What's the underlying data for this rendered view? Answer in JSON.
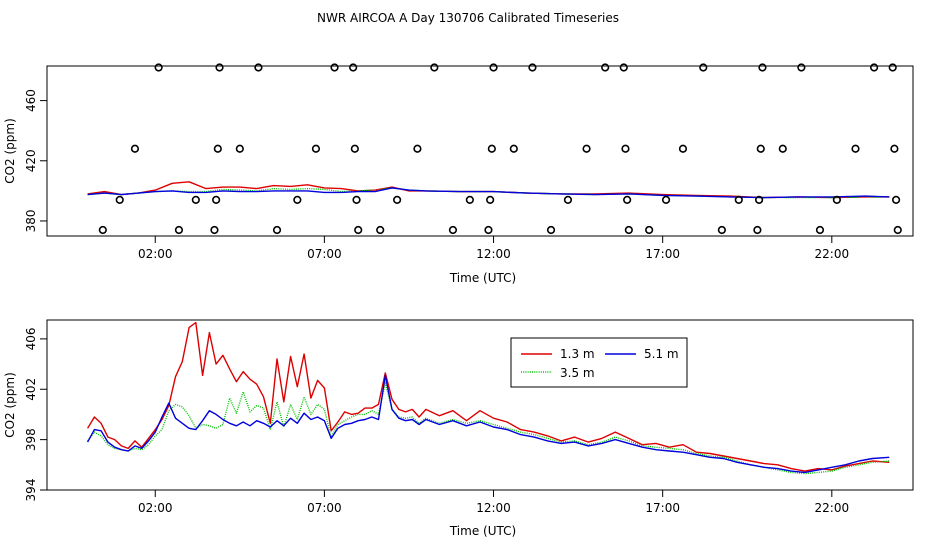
{
  "title": "NWR AIRCOA A  Day 130706  Calibrated Timeseries",
  "colors": {
    "s1": "#dd0000",
    "s2": "#00c000",
    "s3": "#0000dd"
  },
  "chart_data": [
    {
      "type": "scatter",
      "panel": "top",
      "xlabel": "Time (UTC)",
      "ylabel": "CO2 (ppm)",
      "xlim": [
        -1.2,
        24.4
      ],
      "ylim": [
        370,
        483
      ],
      "x_ticks": [
        2,
        7,
        12,
        17,
        22
      ],
      "x_tick_labels": [
        "02:00",
        "07:00",
        "12:00",
        "17:00",
        "22:00"
      ],
      "y_ticks": [
        380,
        420,
        460
      ],
      "y_tick_labels": [
        "380",
        "420",
        "460"
      ],
      "outlier_points": [
        {
          "x": 0.45,
          "y": 374
        },
        {
          "x": 0.95,
          "y": 394
        },
        {
          "x": 1.4,
          "y": 428
        },
        {
          "x": 2.1,
          "y": 482
        },
        {
          "x": 2.7,
          "y": 374
        },
        {
          "x": 3.2,
          "y": 394
        },
        {
          "x": 3.75,
          "y": 374
        },
        {
          "x": 3.8,
          "y": 394
        },
        {
          "x": 3.85,
          "y": 428
        },
        {
          "x": 3.9,
          "y": 482
        },
        {
          "x": 4.5,
          "y": 428
        },
        {
          "x": 5.05,
          "y": 482
        },
        {
          "x": 5.6,
          "y": 374
        },
        {
          "x": 6.2,
          "y": 394
        },
        {
          "x": 6.75,
          "y": 428
        },
        {
          "x": 7.3,
          "y": 482
        },
        {
          "x": 7.85,
          "y": 482
        },
        {
          "x": 7.9,
          "y": 428
        },
        {
          "x": 7.95,
          "y": 394
        },
        {
          "x": 8.0,
          "y": 374
        },
        {
          "x": 8.65,
          "y": 374
        },
        {
          "x": 9.15,
          "y": 394
        },
        {
          "x": 9.75,
          "y": 428
        },
        {
          "x": 10.25,
          "y": 482
        },
        {
          "x": 10.8,
          "y": 374
        },
        {
          "x": 11.3,
          "y": 394
        },
        {
          "x": 11.85,
          "y": 374
        },
        {
          "x": 11.9,
          "y": 394
        },
        {
          "x": 11.95,
          "y": 428
        },
        {
          "x": 12.0,
          "y": 482
        },
        {
          "x": 12.6,
          "y": 428
        },
        {
          "x": 13.15,
          "y": 482
        },
        {
          "x": 13.7,
          "y": 374
        },
        {
          "x": 14.2,
          "y": 394
        },
        {
          "x": 14.75,
          "y": 428
        },
        {
          "x": 15.3,
          "y": 482
        },
        {
          "x": 15.85,
          "y": 482
        },
        {
          "x": 15.9,
          "y": 428
        },
        {
          "x": 15.95,
          "y": 394
        },
        {
          "x": 16.0,
          "y": 374
        },
        {
          "x": 16.6,
          "y": 374
        },
        {
          "x": 17.1,
          "y": 394
        },
        {
          "x": 17.6,
          "y": 428
        },
        {
          "x": 18.2,
          "y": 482
        },
        {
          "x": 18.75,
          "y": 374
        },
        {
          "x": 19.25,
          "y": 394
        },
        {
          "x": 19.8,
          "y": 374
        },
        {
          "x": 19.85,
          "y": 394
        },
        {
          "x": 19.9,
          "y": 428
        },
        {
          "x": 19.95,
          "y": 482
        },
        {
          "x": 20.55,
          "y": 428
        },
        {
          "x": 21.1,
          "y": 482
        },
        {
          "x": 21.65,
          "y": 374
        },
        {
          "x": 22.15,
          "y": 394
        },
        {
          "x": 22.7,
          "y": 428
        },
        {
          "x": 23.25,
          "y": 482
        },
        {
          "x": 23.8,
          "y": 482
        },
        {
          "x": 23.85,
          "y": 428
        },
        {
          "x": 23.9,
          "y": 394
        },
        {
          "x": 23.95,
          "y": 374
        }
      ],
      "series": [
        {
          "name": "1.3 m",
          "x": [
            0,
            0.5,
            1,
            1.5,
            2,
            2.5,
            3,
            3.5,
            4,
            4.5,
            5,
            5.5,
            6,
            6.5,
            7,
            7.5,
            8,
            8.5,
            9,
            9.5,
            10,
            11,
            12,
            13,
            14,
            15,
            16,
            17,
            18,
            19,
            20,
            21,
            22,
            23,
            23.7
          ],
          "y": [
            398,
            399.5,
            397.5,
            398.5,
            400.5,
            405,
            406,
            401.5,
            402.5,
            402.5,
            401.5,
            403.5,
            403,
            404,
            402,
            401.5,
            400,
            400.5,
            402.5,
            400,
            400,
            399.5,
            399.5,
            398.5,
            398,
            398,
            398.5,
            397.5,
            397,
            396.5,
            395.5,
            396,
            395.5,
            396,
            396
          ]
        },
        {
          "name": "3.5 m",
          "x": [
            0,
            0.5,
            1,
            1.5,
            2,
            2.5,
            3,
            3.5,
            4,
            4.5,
            5,
            5.5,
            6,
            6.5,
            7,
            7.5,
            8,
            8.5,
            9,
            9.5,
            10,
            11,
            12,
            13,
            14,
            15,
            16,
            17,
            18,
            19,
            20,
            21,
            22,
            23,
            23.7
          ],
          "y": [
            397.5,
            398.5,
            397.5,
            398.5,
            399.5,
            400,
            399.5,
            399.5,
            401,
            400.5,
            400,
            401.5,
            401,
            401.5,
            401,
            399.5,
            400,
            400.5,
            402,
            400.5,
            400,
            399.5,
            399.5,
            398.5,
            398,
            397.5,
            398,
            397,
            396.5,
            396,
            395.5,
            395.5,
            395.5,
            396,
            396
          ]
        },
        {
          "name": "5.1 m",
          "x": [
            0,
            0.5,
            1,
            1.5,
            2,
            2.5,
            3,
            3.5,
            4,
            4.5,
            5,
            5.5,
            6,
            6.5,
            7,
            7.5,
            8,
            8.5,
            9,
            9.5,
            10,
            11,
            12,
            13,
            14,
            15,
            16,
            17,
            18,
            19,
            20,
            21,
            22,
            23,
            23.7
          ],
          "y": [
            397.5,
            398.5,
            397.5,
            398.5,
            399.5,
            400,
            399,
            399,
            400,
            399.5,
            399.5,
            400,
            400,
            400,
            399,
            399,
            399.5,
            399.5,
            402,
            400.5,
            400,
            399.5,
            399.5,
            398.5,
            398,
            397.5,
            398,
            397,
            396.5,
            396,
            395.5,
            396,
            396,
            396.5,
            396
          ]
        }
      ]
    },
    {
      "type": "line",
      "panel": "bottom",
      "xlabel": "Time (UTC)",
      "ylabel": "CO2 (ppm)",
      "xlim": [
        -1.2,
        24.4
      ],
      "ylim": [
        394,
        407.5
      ],
      "x_ticks": [
        2,
        7,
        12,
        17,
        22
      ],
      "x_tick_labels": [
        "02:00",
        "07:00",
        "12:00",
        "17:00",
        "22:00"
      ],
      "y_ticks": [
        394,
        398,
        402,
        406
      ],
      "y_tick_labels": [
        "394",
        "398",
        "402",
        "406"
      ],
      "legend": {
        "position": "top-center",
        "labels": [
          "1.3 m",
          "5.1 m",
          "3.5 m"
        ]
      },
      "series": [
        {
          "name": "1.3 m",
          "x": [
            0,
            0.2,
            0.4,
            0.6,
            0.8,
            1.0,
            1.2,
            1.4,
            1.6,
            1.8,
            2.0,
            2.2,
            2.4,
            2.6,
            2.8,
            3.0,
            3.2,
            3.4,
            3.6,
            3.8,
            4.0,
            4.2,
            4.4,
            4.6,
            4.8,
            5.0,
            5.2,
            5.4,
            5.6,
            5.8,
            6.0,
            6.2,
            6.4,
            6.6,
            6.8,
            7.0,
            7.2,
            7.4,
            7.6,
            7.8,
            8.0,
            8.2,
            8.4,
            8.6,
            8.8,
            9.0,
            9.2,
            9.4,
            9.6,
            9.8,
            10.0,
            10.4,
            10.8,
            11.2,
            11.6,
            12.0,
            12.4,
            12.8,
            13.2,
            13.6,
            14.0,
            14.4,
            14.8,
            15.2,
            15.6,
            16.0,
            16.4,
            16.8,
            17.2,
            17.6,
            18.0,
            18.4,
            18.8,
            19.2,
            19.6,
            20.0,
            20.4,
            20.8,
            21.2,
            21.6,
            22.0,
            22.4,
            22.8,
            23.2,
            23.7
          ],
          "y": [
            398.9,
            399.8,
            399.3,
            398.2,
            398.0,
            397.5,
            397.3,
            397.9,
            397.4,
            398.1,
            398.8,
            399.6,
            400.7,
            403.0,
            404.2,
            406.9,
            407.3,
            403.1,
            406.5,
            404.0,
            404.7,
            403.6,
            402.6,
            403.4,
            402.8,
            402.4,
            401.4,
            399.3,
            404.4,
            401.0,
            404.6,
            402.2,
            404.8,
            401.3,
            402.7,
            402.1,
            398.7,
            399.4,
            400.2,
            400.0,
            400.1,
            400.5,
            400.5,
            400.8,
            403.3,
            401.2,
            400.4,
            400.2,
            400.4,
            399.8,
            400.4,
            399.9,
            400.3,
            399.5,
            400.3,
            399.7,
            399.4,
            398.8,
            398.6,
            398.3,
            397.9,
            398.2,
            397.8,
            398.1,
            398.6,
            398.1,
            397.6,
            397.7,
            397.4,
            397.6,
            397.0,
            396.9,
            396.7,
            396.5,
            396.3,
            396.1,
            396.0,
            395.7,
            395.5,
            395.7,
            395.6,
            395.9,
            396.1,
            396.3,
            396.2
          ]
        },
        {
          "name": "3.5 m",
          "x": [
            0,
            0.2,
            0.4,
            0.6,
            0.8,
            1.0,
            1.2,
            1.4,
            1.6,
            1.8,
            2.0,
            2.2,
            2.4,
            2.6,
            2.8,
            3.0,
            3.2,
            3.4,
            3.6,
            3.8,
            4.0,
            4.2,
            4.4,
            4.6,
            4.8,
            5.0,
            5.2,
            5.4,
            5.6,
            5.8,
            6.0,
            6.2,
            6.4,
            6.6,
            6.8,
            7.0,
            7.2,
            7.4,
            7.6,
            7.8,
            8.0,
            8.2,
            8.4,
            8.6,
            8.8,
            9.0,
            9.2,
            9.4,
            9.6,
            9.8,
            10.0,
            10.4,
            10.8,
            11.2,
            11.6,
            12.0,
            12.4,
            12.8,
            13.2,
            13.6,
            14.0,
            14.4,
            14.8,
            15.2,
            15.6,
            16.0,
            16.4,
            16.8,
            17.2,
            17.6,
            18.0,
            18.4,
            18.8,
            19.2,
            19.6,
            20.0,
            20.4,
            20.8,
            21.2,
            21.6,
            22.0,
            22.4,
            22.8,
            23.2,
            23.7
          ],
          "y": [
            397.9,
            398.6,
            398.3,
            397.6,
            397.3,
            397.2,
            397.1,
            397.3,
            397.2,
            397.6,
            398.3,
            398.8,
            400.3,
            400.8,
            400.6,
            399.9,
            398.9,
            399.2,
            399.1,
            398.9,
            399.2,
            401.3,
            400.1,
            401.8,
            400.2,
            400.7,
            400.5,
            398.8,
            401.0,
            399.0,
            400.8,
            399.6,
            401.4,
            400.0,
            400.8,
            400.4,
            398.2,
            399.2,
            399.5,
            399.8,
            400.0,
            400.0,
            400.3,
            400.0,
            402.5,
            400.4,
            399.8,
            399.7,
            399.8,
            399.3,
            399.7,
            399.3,
            399.6,
            399.3,
            399.5,
            399.2,
            398.9,
            398.6,
            398.4,
            398.1,
            397.8,
            397.9,
            397.6,
            397.8,
            398.2,
            397.9,
            397.5,
            397.4,
            397.3,
            397.2,
            396.9,
            396.7,
            396.6,
            396.3,
            396.0,
            395.8,
            395.6,
            395.4,
            395.3,
            395.4,
            395.5,
            395.8,
            396.0,
            396.2,
            396.3
          ]
        },
        {
          "name": "5.1 m",
          "x": [
            0,
            0.2,
            0.4,
            0.6,
            0.8,
            1.0,
            1.2,
            1.4,
            1.6,
            1.8,
            2.0,
            2.2,
            2.4,
            2.6,
            2.8,
            3.0,
            3.2,
            3.4,
            3.6,
            3.8,
            4.0,
            4.2,
            4.4,
            4.6,
            4.8,
            5.0,
            5.2,
            5.4,
            5.6,
            5.8,
            6.0,
            6.2,
            6.4,
            6.6,
            6.8,
            7.0,
            7.2,
            7.4,
            7.6,
            7.8,
            8.0,
            8.2,
            8.4,
            8.6,
            8.8,
            9.0,
            9.2,
            9.4,
            9.6,
            9.8,
            10.0,
            10.4,
            10.8,
            11.2,
            11.6,
            12.0,
            12.4,
            12.8,
            13.2,
            13.6,
            14.0,
            14.4,
            14.8,
            15.2,
            15.6,
            16.0,
            16.4,
            16.8,
            17.2,
            17.6,
            18.0,
            18.4,
            18.8,
            19.2,
            19.6,
            20.0,
            20.4,
            20.8,
            21.2,
            21.6,
            22.0,
            22.4,
            22.8,
            23.2,
            23.7
          ],
          "y": [
            397.8,
            398.8,
            398.7,
            397.8,
            397.4,
            397.2,
            397.1,
            397.5,
            397.3,
            397.9,
            398.6,
            399.8,
            400.9,
            399.7,
            399.3,
            398.9,
            398.8,
            399.5,
            400.3,
            400.0,
            399.6,
            399.3,
            399.1,
            399.4,
            399.1,
            399.5,
            399.3,
            399.0,
            399.5,
            399.1,
            399.7,
            399.3,
            400.1,
            399.6,
            399.8,
            399.5,
            398.1,
            398.9,
            399.2,
            399.3,
            399.5,
            399.6,
            399.8,
            399.6,
            403.1,
            400.4,
            399.7,
            399.5,
            399.6,
            399.2,
            399.6,
            399.2,
            399.5,
            399.1,
            399.4,
            399.0,
            398.8,
            398.4,
            398.2,
            397.9,
            397.7,
            397.8,
            397.5,
            397.7,
            398.0,
            397.7,
            397.4,
            397.2,
            397.1,
            397.0,
            396.8,
            396.6,
            396.5,
            396.2,
            396.0,
            395.8,
            395.7,
            395.5,
            395.4,
            395.6,
            395.8,
            396.0,
            396.3,
            396.5,
            396.6
          ]
        }
      ]
    }
  ]
}
